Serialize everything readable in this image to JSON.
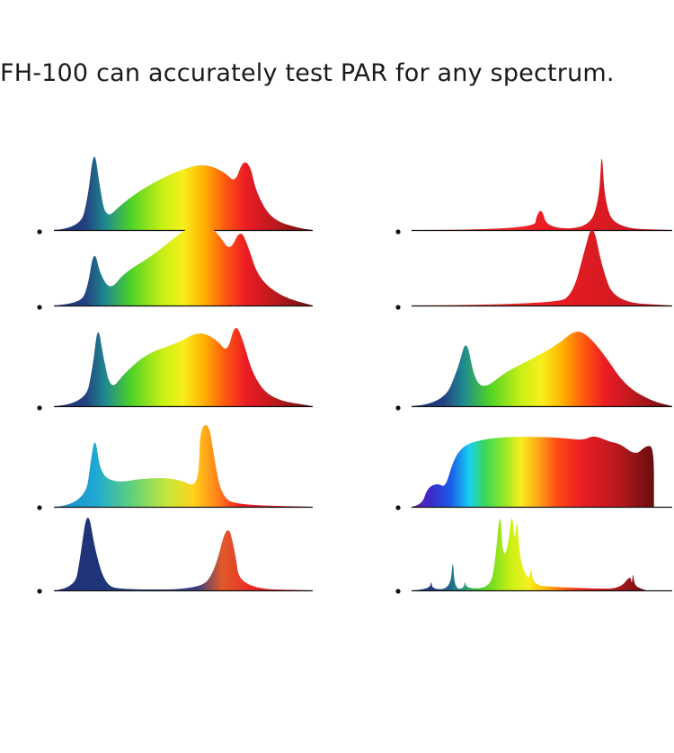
{
  "headline": "FH-100 can accurately test PAR for any spectrum.",
  "gradients": {
    "full": [
      [
        0,
        "#1f2f7a"
      ],
      [
        0.12,
        "#22407f"
      ],
      [
        0.2,
        "#1f8a8f"
      ],
      [
        0.3,
        "#4fd326"
      ],
      [
        0.42,
        "#c8f015"
      ],
      [
        0.5,
        "#f7ef1c"
      ],
      [
        0.58,
        "#ffb000"
      ],
      [
        0.66,
        "#ff5a0f"
      ],
      [
        0.74,
        "#ec1c24"
      ],
      [
        0.86,
        "#b8191e"
      ],
      [
        1,
        "#6a0c0e"
      ]
    ],
    "cool": [
      [
        0,
        "#1f86c8"
      ],
      [
        0.16,
        "#1fa8d4"
      ],
      [
        0.3,
        "#5fd07a"
      ],
      [
        0.44,
        "#c7e83a"
      ],
      [
        0.54,
        "#ffd11a"
      ],
      [
        0.64,
        "#ff7a1a"
      ],
      [
        0.72,
        "#ec1c24"
      ],
      [
        0.86,
        "#d41a20"
      ],
      [
        1,
        "#a81418"
      ]
    ],
    "wide": [
      [
        0,
        "#6a1aa8"
      ],
      [
        0.08,
        "#3a2cc8"
      ],
      [
        0.16,
        "#1a5ae8"
      ],
      [
        0.24,
        "#18d0f0"
      ],
      [
        0.3,
        "#3ad65a"
      ],
      [
        0.38,
        "#8ee82a"
      ],
      [
        0.45,
        "#f7ef1c"
      ],
      [
        0.52,
        "#ffa81a"
      ],
      [
        0.6,
        "#ff4a14"
      ],
      [
        0.7,
        "#ec1c24"
      ],
      [
        0.85,
        "#b8191e"
      ],
      [
        1,
        "#6a0c0e"
      ]
    ],
    "blue_red": [
      [
        0,
        "#1f2f7a"
      ],
      [
        0.25,
        "#213878"
      ],
      [
        0.3,
        "#2a3f7c"
      ],
      [
        0.55,
        "#3b3f80"
      ],
      [
        0.65,
        "#e05a2a"
      ],
      [
        0.8,
        "#ec1c24"
      ],
      [
        1,
        "#c41a20"
      ]
    ],
    "red": [
      [
        0,
        "#f05a2a"
      ],
      [
        0.5,
        "#ec1c24"
      ],
      [
        1,
        "#c2181e"
      ]
    ]
  }
}
